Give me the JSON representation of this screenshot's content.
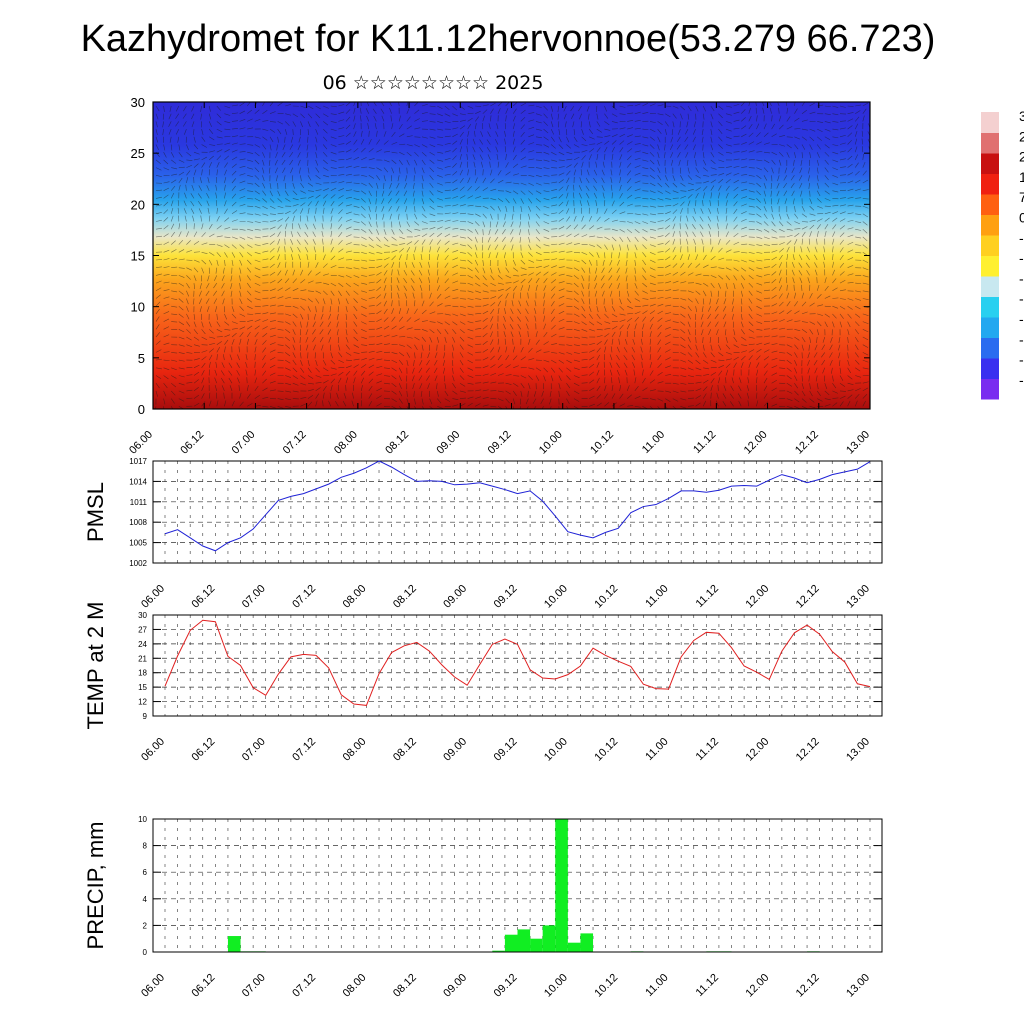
{
  "header": {
    "title": "Kazhydromet for K11.12hervonnoe(53.279 66.723)",
    "subtitle": "06 ☆☆☆☆☆☆☆☆ 2025"
  },
  "colors": {
    "pmsl_line": "#1f22d6",
    "temp_line": "#e02020",
    "precip_bar": "#11ee22",
    "grid": "#333333",
    "colorbar": [
      "#7a2cf0",
      "#3a2ff0",
      "#2a6cf0",
      "#22a8f0",
      "#28d0f0",
      "#c8e8f0",
      "#fff030",
      "#ffd020",
      "#ffa010",
      "#ff6010",
      "#f02010",
      "#c81010",
      "#e07070",
      "#f4d0d0"
    ]
  },
  "x_tick_labels": [
    "06.00",
    "06.12",
    "07.00",
    "07.12",
    "08.00",
    "08.12",
    "09.00",
    "09.12",
    "10.00",
    "10.12",
    "11.00",
    "11.12",
    "12.00",
    "12.12",
    "13.00"
  ],
  "chart_data": [
    {
      "type": "heatmap",
      "title": "",
      "ylabel": "",
      "ylim": [
        0,
        30
      ],
      "y_ticks": [
        0,
        5,
        10,
        15,
        20,
        25,
        30
      ],
      "x_categories": [
        "06.00",
        "06.12",
        "07.00",
        "07.12",
        "08.00",
        "08.12",
        "09.00",
        "09.12",
        "10.00",
        "10.12",
        "11.00",
        "11.12",
        "12.00",
        "12.12",
        "13.00"
      ],
      "note_overlay": "wind vectors",
      "colorbar_labels": [
        "3",
        "2",
        "2",
        "1",
        "7",
        "0",
        "-",
        "-",
        "-",
        "-",
        "-",
        "-",
        "-",
        "-"
      ]
    },
    {
      "type": "line",
      "ylabel": "PMSL",
      "ylim": [
        1002,
        1017
      ],
      "y_ticks": [
        1002,
        1005,
        1008,
        1011,
        1014,
        1017
      ],
      "x_start": "06.00",
      "x_step_hours": 3,
      "series": [
        {
          "values": [
            1006.3,
            1006.9,
            1005.7,
            1004.5,
            1003.8,
            1005.0,
            1005.7,
            1007.0,
            1009.1,
            1011.2,
            1011.8,
            1012.2,
            1012.9,
            1013.6,
            1014.6,
            1015.2,
            1016.0,
            1017.0,
            1016.1,
            1015.0,
            1014.0,
            1014.1,
            1014.0,
            1013.5,
            1013.6,
            1013.8,
            1013.3,
            1012.8,
            1012.2,
            1012.6,
            1011.1,
            1008.9,
            1006.6,
            1006.1,
            1005.7,
            1006.5,
            1007.1,
            1009.4,
            1010.3,
            1010.6,
            1011.5,
            1012.6,
            1012.6,
            1012.4,
            1012.7,
            1013.3,
            1013.4,
            1013.3,
            1014.2,
            1015.0,
            1014.5,
            1013.8,
            1014.3,
            1015.0,
            1015.4,
            1015.8,
            1016.9
          ]
        }
      ]
    },
    {
      "type": "line",
      "ylabel": "TEMP at 2 M",
      "ylim": [
        9,
        30
      ],
      "y_ticks": [
        9,
        12,
        15,
        18,
        21,
        24,
        27,
        30
      ],
      "x_start": "06.00",
      "x_step_hours": 3,
      "series": [
        {
          "values": [
            15.2,
            21.5,
            26.8,
            28.9,
            28.6,
            21.4,
            19.5,
            14.9,
            13.3,
            17.7,
            21.3,
            21.8,
            21.6,
            19.0,
            13.4,
            11.5,
            11.2,
            17.8,
            22.2,
            23.6,
            24.3,
            22.5,
            19.6,
            17.1,
            15.4,
            19.7,
            23.9,
            25.0,
            23.9,
            18.6,
            16.9,
            16.7,
            17.6,
            19.4,
            23.1,
            21.6,
            20.4,
            19.3,
            15.6,
            14.7,
            14.6,
            21.3,
            24.7,
            26.4,
            26.2,
            23.2,
            19.4,
            18.1,
            16.6,
            22.5,
            26.3,
            27.9,
            26.0,
            22.4,
            20.2,
            15.7,
            15.1
          ]
        }
      ]
    },
    {
      "type": "bar",
      "ylabel": "PRECIP, mm",
      "ylim": [
        0,
        10
      ],
      "y_ticks": [
        0,
        2,
        4,
        6,
        8,
        10
      ],
      "x_start": "06.00",
      "x_step_hours": 3,
      "values": [
        0,
        0,
        0,
        0,
        0,
        1.2,
        0.05,
        0.05,
        0,
        0,
        0,
        0,
        0,
        0,
        0,
        0,
        0,
        0,
        0,
        0,
        0,
        0,
        0,
        0,
        0,
        0,
        0.1,
        1.3,
        1.7,
        1.0,
        2.0,
        10.0,
        0.7,
        1.4,
        0,
        0,
        0,
        0.05,
        0,
        0,
        0,
        0,
        0,
        0.05,
        0.05,
        0,
        0,
        0,
        0,
        0,
        0,
        0.05,
        0,
        0,
        0,
        0
      ]
    }
  ]
}
